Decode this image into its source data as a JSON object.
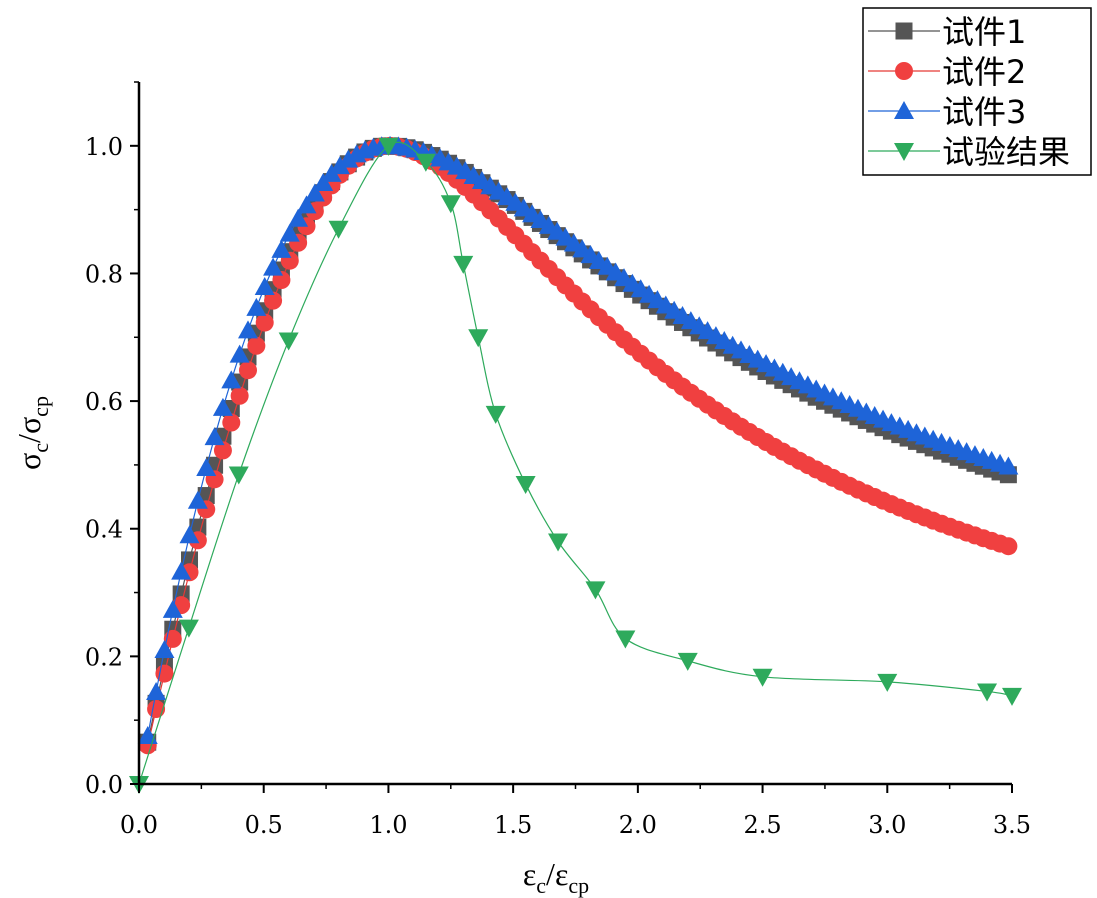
{
  "chart_data": {
    "type": "scatter",
    "xlabel": {
      "main": "ε",
      "sub1": "c",
      "slash": "/",
      "main2": "ε",
      "sub2": "cp"
    },
    "ylabel": {
      "main": "σ",
      "sub1": "c",
      "slash": "/",
      "main2": "σ",
      "sub2": "cp"
    },
    "xlim": [
      0,
      3.5
    ],
    "ylim": [
      0,
      1.1
    ],
    "x_ticks": [
      "0.0",
      "0.5",
      "1.0",
      "1.5",
      "2.0",
      "2.5",
      "3.0",
      "3.5"
    ],
    "y_ticks": [
      "0.0",
      "0.2",
      "0.4",
      "0.6",
      "0.8",
      "1.0"
    ],
    "grid": false,
    "legend_position": "top-right",
    "series": [
      {
        "name": "试件1",
        "marker": "square",
        "color": "#555555",
        "line_color": "#555555",
        "model": {
          "type": "guo",
          "a": 1.9,
          "b": 0.6,
          "rise_exp": 1.0
        }
      },
      {
        "name": "试件2",
        "marker": "circle",
        "color": "#f04040",
        "line_color": "#e53935",
        "model": {
          "type": "guo",
          "a": 1.75,
          "b": 0.95,
          "rise_exp": 1.0
        }
      },
      {
        "name": "试件3",
        "marker": "triangle-up",
        "color": "#1e64d8",
        "line_color": "#1e64d8",
        "model": {
          "type": "guo",
          "a": 2.2,
          "b": 0.57,
          "rise_exp": 1.0
        }
      },
      {
        "name": "试验结果",
        "marker": "triangle-down",
        "color": "#2eaa5c",
        "line_color": "#2eaa5c",
        "points": [
          [
            0.0,
            0.0
          ],
          [
            0.2,
            0.245
          ],
          [
            0.4,
            0.485
          ],
          [
            0.6,
            0.695
          ],
          [
            0.8,
            0.87
          ],
          [
            1.0,
            1.0
          ],
          [
            1.15,
            0.975
          ],
          [
            1.25,
            0.91
          ],
          [
            1.3,
            0.815
          ],
          [
            1.36,
            0.7
          ],
          [
            1.43,
            0.58
          ],
          [
            1.55,
            0.47
          ],
          [
            1.68,
            0.38
          ],
          [
            1.83,
            0.305
          ],
          [
            1.95,
            0.228
          ],
          [
            2.2,
            0.193
          ],
          [
            2.5,
            0.168
          ],
          [
            3.0,
            0.16
          ],
          [
            3.4,
            0.145
          ],
          [
            3.5,
            0.138
          ]
        ]
      }
    ]
  }
}
